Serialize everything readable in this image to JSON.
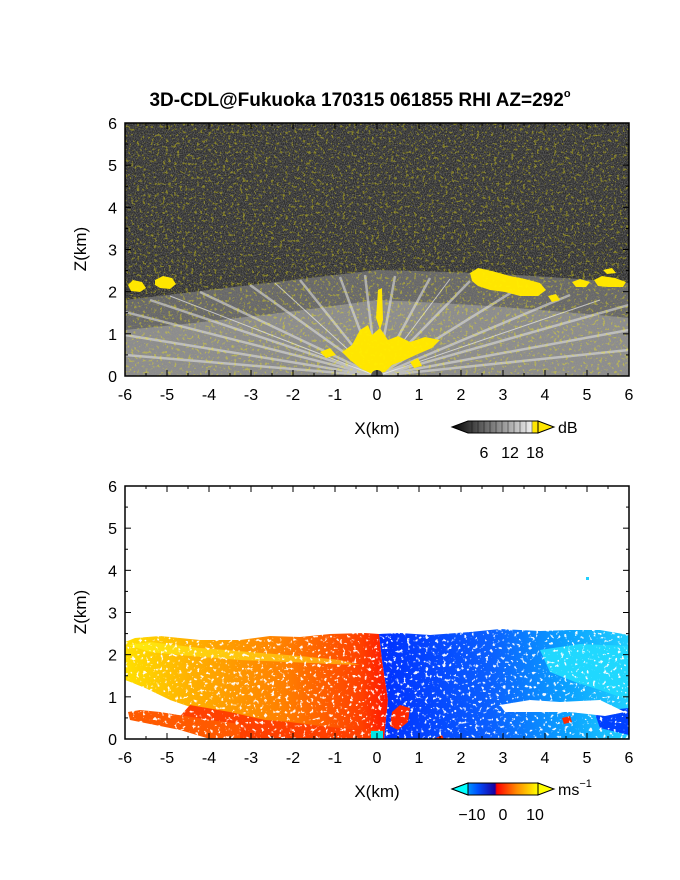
{
  "title_text": "3D-CDL@Fukuoka 170315 061855 RHI AZ=292",
  "title_degree": "o",
  "chart_data": [
    {
      "type": "heatmap",
      "name": "backscatter",
      "xlabel": "X(km)",
      "ylabel": "Z(km)",
      "xlim": [
        -6,
        6
      ],
      "ylim": [
        0,
        6
      ],
      "x_ticks": [
        "-6",
        "-5",
        "-4",
        "-3",
        "-2",
        "-1",
        "0",
        "1",
        "2",
        "3",
        "4",
        "5",
        "6"
      ],
      "y_ticks": [
        "0",
        "1",
        "2",
        "3",
        "4",
        "5",
        "6"
      ],
      "colorbar": {
        "unit": "dB",
        "ticks": [
          "6",
          "12",
          "18"
        ],
        "range": [
          0,
          21
        ]
      },
      "colors": {
        "background": "#2b2b2b",
        "noise": "#3a3a3a",
        "beam": "#d8d8d8",
        "saturated": "#ffe600"
      },
      "features": [
        {
          "label": "cloud layer left",
          "x": [
            -6.0,
            -4.7
          ],
          "z": [
            1.95,
            2.3
          ],
          "level": "saturated"
        },
        {
          "label": "cloud layer right",
          "x": [
            2.2,
            6.0
          ],
          "z": [
            1.9,
            2.5
          ],
          "level": "saturated"
        },
        {
          "label": "near-lidar echo",
          "x": [
            -1.0,
            1.5
          ],
          "z": [
            0.0,
            2.1
          ],
          "level": "saturated"
        },
        {
          "label": "boundary layer",
          "x": [
            -6.0,
            6.0
          ],
          "z": [
            0.0,
            1.8
          ],
          "level": "beam"
        }
      ]
    },
    {
      "type": "heatmap",
      "name": "radial velocity",
      "xlabel": "X(km)",
      "ylabel": "Z(km)",
      "xlim": [
        -6,
        6
      ],
      "ylim": [
        0,
        6
      ],
      "x_ticks": [
        "-6",
        "-5",
        "-4",
        "-3",
        "-2",
        "-1",
        "0",
        "1",
        "2",
        "3",
        "4",
        "5",
        "6"
      ],
      "y_ticks": [
        "0",
        "1",
        "2",
        "3",
        "4",
        "5",
        "6"
      ],
      "colorbar": {
        "unit": "ms",
        "unit_exp": "−1",
        "ticks": [
          "−10",
          "0",
          "10"
        ],
        "range": [
          -13,
          13
        ]
      },
      "colors": {
        "neg_far": "#00ffff",
        "neg": "#0030ff",
        "zero": "#ff2000",
        "pos": "#ff8000",
        "pos_far": "#ffff00"
      },
      "features": [
        {
          "label": "outbound wind west",
          "x": [
            -6.0,
            0.0
          ],
          "z": [
            0.0,
            2.4
          ],
          "value": 9
        },
        {
          "label": "inbound wind east",
          "x": [
            0.0,
            6.0
          ],
          "z": [
            0.0,
            2.5
          ],
          "value": -9
        }
      ]
    }
  ]
}
